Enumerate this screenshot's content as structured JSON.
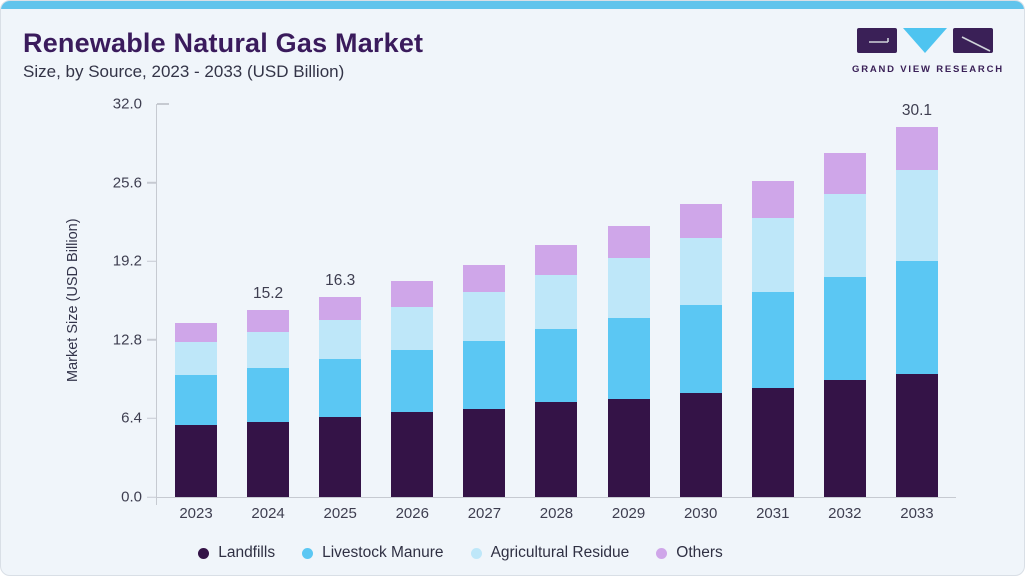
{
  "header": {
    "title": "Renewable Natural Gas Market",
    "subtitle": "Size, by Source, 2023 - 2033 (USD Billion)"
  },
  "logo": {
    "text": "GRAND VIEW RESEARCH"
  },
  "theme": {
    "background": "#f0f5fa",
    "top_strip": "#61c4ec",
    "title_color": "#3a1b5c",
    "axis_color": "#c6cad1",
    "text_color": "#3e3e50"
  },
  "chart_data": {
    "type": "bar",
    "stacked": true,
    "title": "Renewable Natural Gas Market Size, by Source, 2023 - 2033 (USD Billion)",
    "categories": [
      "2023",
      "2024",
      "2025",
      "2026",
      "2027",
      "2028",
      "2029",
      "2030",
      "2031",
      "2032",
      "2033"
    ],
    "series": [
      {
        "name": "Landfills",
        "color": "#341347",
        "values": [
          5.9,
          6.1,
          6.5,
          6.9,
          7.2,
          7.7,
          8.0,
          8.5,
          8.9,
          9.5,
          10.0
        ]
      },
      {
        "name": "Livestock Manure",
        "color": "#5bc7f3",
        "values": [
          4.0,
          4.4,
          4.7,
          5.1,
          5.5,
          6.0,
          6.6,
          7.1,
          7.8,
          8.4,
          9.2
        ]
      },
      {
        "name": "Agricultural Residue",
        "color": "#bee7f9",
        "values": [
          2.7,
          2.9,
          3.2,
          3.5,
          4.0,
          4.4,
          4.9,
          5.5,
          6.0,
          6.8,
          7.4
        ]
      },
      {
        "name": "Others",
        "color": "#cfa6e9",
        "values": [
          1.6,
          1.8,
          1.9,
          2.1,
          2.2,
          2.4,
          2.6,
          2.8,
          3.0,
          3.3,
          3.5
        ]
      }
    ],
    "totals": [
      14.2,
      15.2,
      16.3,
      17.6,
      18.9,
      20.5,
      22.1,
      23.9,
      25.7,
      28.0,
      30.1
    ],
    "bar_labels": {
      "2024": "15.2",
      "2025": "16.3",
      "2033": "30.1"
    },
    "ylabel": "Market Size (USD Billion)",
    "yticks": [
      0.0,
      6.4,
      12.8,
      19.2,
      25.6,
      32.0
    ],
    "ylim": [
      0,
      32
    ],
    "grid": false,
    "legend_position": "bottom"
  }
}
